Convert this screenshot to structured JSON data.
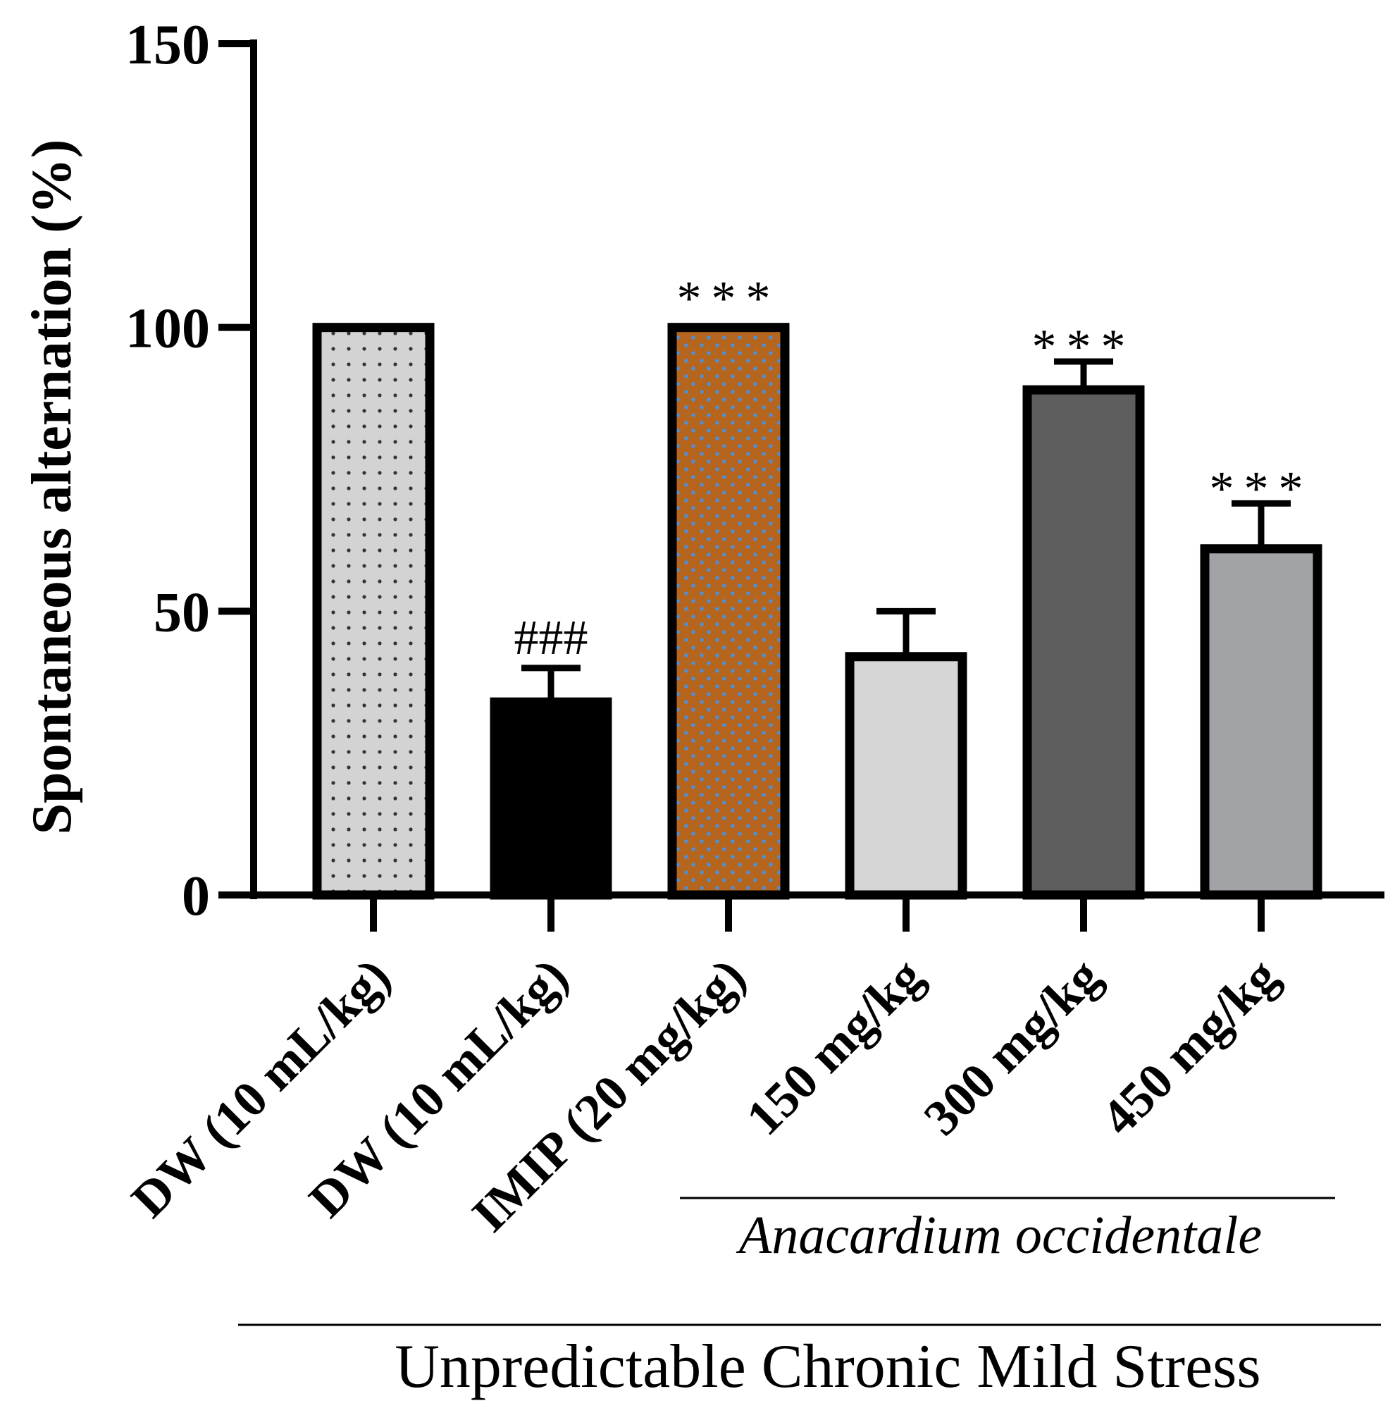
{
  "chart_data": {
    "type": "bar",
    "ylabel": "Spontaneous alternation  (%)",
    "ylim": [
      0,
      150
    ],
    "yticks": [
      0,
      50,
      100,
      150
    ],
    "categories": [
      "DW (10 mL/kg)",
      "DW (10 mL/kg)",
      "IMIP (20 mg/kg)",
      "150 mg/kg",
      "300 mg/kg",
      "450 mg/kg"
    ],
    "values": [
      100,
      34,
      100,
      42,
      89,
      61
    ],
    "errors": [
      0,
      6,
      0,
      8,
      5,
      8
    ],
    "significance": [
      "",
      "###",
      "***",
      "",
      "***",
      "***"
    ],
    "fills": [
      "#d3d3d3",
      "#000000",
      "#b5651d",
      "#d6d6d6",
      "#5e5e5e",
      "#a2a3a7"
    ],
    "patterns": [
      "dots",
      "none",
      "blue-dots",
      "none",
      "none",
      "none"
    ],
    "groups": [
      {
        "label": "Anacardium occidentale",
        "style": "italic",
        "from": 3,
        "to": 5
      },
      {
        "label": "Unpredictable Chronic Mild Stress",
        "style": "normal",
        "from": 1,
        "to": 5
      }
    ]
  }
}
